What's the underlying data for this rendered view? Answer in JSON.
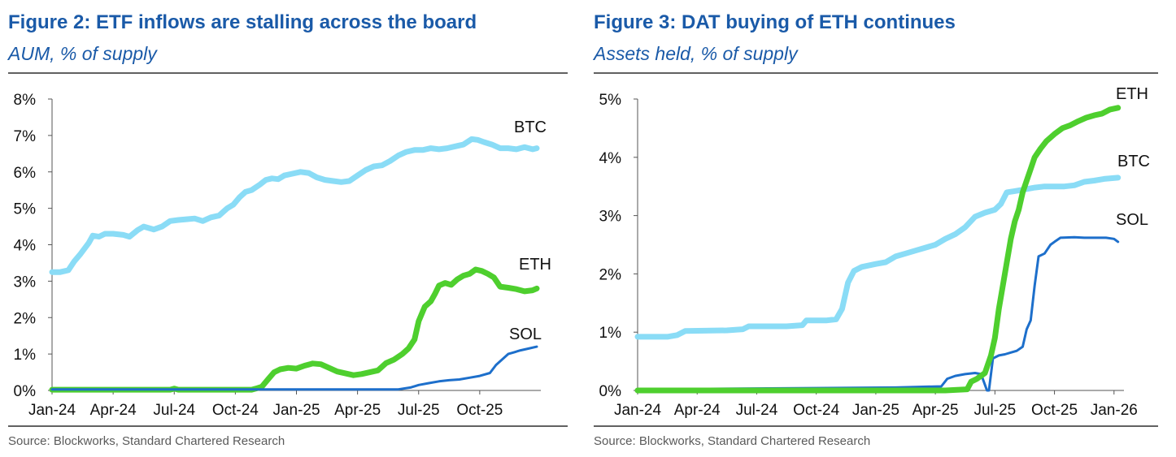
{
  "colors": {
    "BTC": "#8adcf6",
    "ETH": "#4ecf2e",
    "SOL": "#1d6fcb",
    "title": "#1a5aa8",
    "rule": "#2d2d2d",
    "axis": "#555555",
    "source": "#5a5a5a"
  },
  "chart_data": [
    {
      "type": "line",
      "title": "Figure 2: ETF inflows are stalling across the board",
      "subtitle": "AUM, % of supply",
      "source": "Source: Blockworks, Standard Chartered Research",
      "y_format": "percent",
      "ylim": [
        0,
        8
      ],
      "yticks": [
        0,
        1,
        2,
        3,
        4,
        5,
        6,
        7,
        8
      ],
      "xlim": [
        0,
        24
      ],
      "x_unit": "months since Jan-24",
      "xticks": [
        {
          "x": 0,
          "label": "Jan-24"
        },
        {
          "x": 3,
          "label": "Apr-24"
        },
        {
          "x": 6,
          "label": "Jul-24"
        },
        {
          "x": 9,
          "label": "Oct-24"
        },
        {
          "x": 12,
          "label": "Jan-25"
        },
        {
          "x": 15,
          "label": "Apr-25"
        },
        {
          "x": 18,
          "label": "Jul-25"
        },
        {
          "x": 21,
          "label": "Oct-25"
        }
      ],
      "series": [
        {
          "name": "BTC",
          "label": "BTC",
          "width": 7,
          "points": [
            [
              0,
              3.25
            ],
            [
              0.4,
              3.25
            ],
            [
              0.8,
              3.3
            ],
            [
              1.1,
              3.55
            ],
            [
              1.4,
              3.75
            ],
            [
              1.8,
              4.05
            ],
            [
              2.0,
              4.25
            ],
            [
              2.3,
              4.22
            ],
            [
              2.6,
              4.3
            ],
            [
              3.0,
              4.3
            ],
            [
              3.5,
              4.27
            ],
            [
              3.8,
              4.22
            ],
            [
              4.2,
              4.4
            ],
            [
              4.5,
              4.5
            ],
            [
              5.0,
              4.42
            ],
            [
              5.4,
              4.5
            ],
            [
              5.8,
              4.65
            ],
            [
              6.2,
              4.68
            ],
            [
              6.6,
              4.7
            ],
            [
              7.0,
              4.72
            ],
            [
              7.4,
              4.65
            ],
            [
              7.8,
              4.75
            ],
            [
              8.2,
              4.8
            ],
            [
              8.6,
              5.0
            ],
            [
              8.9,
              5.1
            ],
            [
              9.2,
              5.3
            ],
            [
              9.5,
              5.45
            ],
            [
              9.8,
              5.5
            ],
            [
              10.2,
              5.65
            ],
            [
              10.5,
              5.78
            ],
            [
              10.8,
              5.82
            ],
            [
              11.1,
              5.8
            ],
            [
              11.4,
              5.9
            ],
            [
              11.8,
              5.95
            ],
            [
              12.2,
              6.0
            ],
            [
              12.6,
              5.97
            ],
            [
              13.0,
              5.85
            ],
            [
              13.4,
              5.78
            ],
            [
              13.8,
              5.75
            ],
            [
              14.2,
              5.72
            ],
            [
              14.6,
              5.75
            ],
            [
              15.0,
              5.9
            ],
            [
              15.4,
              6.05
            ],
            [
              15.8,
              6.15
            ],
            [
              16.2,
              6.18
            ],
            [
              16.6,
              6.3
            ],
            [
              17.0,
              6.45
            ],
            [
              17.4,
              6.55
            ],
            [
              17.8,
              6.6
            ],
            [
              18.2,
              6.6
            ],
            [
              18.6,
              6.65
            ],
            [
              19.0,
              6.62
            ],
            [
              19.4,
              6.65
            ],
            [
              19.8,
              6.7
            ],
            [
              20.2,
              6.75
            ],
            [
              20.6,
              6.9
            ],
            [
              20.9,
              6.88
            ],
            [
              21.2,
              6.82
            ],
            [
              21.6,
              6.75
            ],
            [
              22.0,
              6.65
            ],
            [
              22.4,
              6.65
            ],
            [
              22.8,
              6.62
            ],
            [
              23.2,
              6.68
            ],
            [
              23.6,
              6.62
            ],
            [
              23.8,
              6.65
            ]
          ]
        },
        {
          "name": "ETH",
          "label": "ETH",
          "width": 7,
          "points": [
            [
              0,
              0.02
            ],
            [
              5.8,
              0.02
            ],
            [
              6.0,
              0.05
            ],
            [
              6.2,
              0.02
            ],
            [
              9.8,
              0.02
            ],
            [
              10.0,
              0.05
            ],
            [
              10.3,
              0.1
            ],
            [
              10.6,
              0.3
            ],
            [
              10.9,
              0.5
            ],
            [
              11.2,
              0.58
            ],
            [
              11.6,
              0.62
            ],
            [
              12.0,
              0.6
            ],
            [
              12.4,
              0.68
            ],
            [
              12.8,
              0.74
            ],
            [
              13.2,
              0.72
            ],
            [
              13.6,
              0.62
            ],
            [
              14.0,
              0.52
            ],
            [
              14.4,
              0.47
            ],
            [
              14.8,
              0.42
            ],
            [
              15.2,
              0.45
            ],
            [
              15.6,
              0.5
            ],
            [
              16.0,
              0.55
            ],
            [
              16.4,
              0.75
            ],
            [
              16.8,
              0.85
            ],
            [
              17.2,
              1.0
            ],
            [
              17.5,
              1.15
            ],
            [
              17.8,
              1.4
            ],
            [
              18.0,
              1.9
            ],
            [
              18.3,
              2.3
            ],
            [
              18.6,
              2.45
            ],
            [
              18.8,
              2.65
            ],
            [
              19.0,
              2.88
            ],
            [
              19.3,
              2.95
            ],
            [
              19.6,
              2.9
            ],
            [
              19.9,
              3.05
            ],
            [
              20.2,
              3.15
            ],
            [
              20.5,
              3.2
            ],
            [
              20.8,
              3.32
            ],
            [
              21.1,
              3.28
            ],
            [
              21.4,
              3.2
            ],
            [
              21.7,
              3.1
            ],
            [
              22.0,
              2.85
            ],
            [
              22.4,
              2.82
            ],
            [
              22.8,
              2.78
            ],
            [
              23.2,
              2.72
            ],
            [
              23.6,
              2.75
            ],
            [
              23.8,
              2.8
            ]
          ]
        },
        {
          "name": "SOL",
          "label": "SOL",
          "width": 3,
          "points": [
            [
              0,
              0.03
            ],
            [
              17.0,
              0.03
            ],
            [
              17.6,
              0.08
            ],
            [
              18.0,
              0.15
            ],
            [
              18.5,
              0.2
            ],
            [
              19.0,
              0.25
            ],
            [
              19.5,
              0.28
            ],
            [
              20.0,
              0.3
            ],
            [
              20.5,
              0.35
            ],
            [
              21.0,
              0.4
            ],
            [
              21.5,
              0.48
            ],
            [
              21.8,
              0.7
            ],
            [
              22.1,
              0.85
            ],
            [
              22.4,
              1.0
            ],
            [
              22.7,
              1.05
            ],
            [
              23.0,
              1.1
            ],
            [
              23.4,
              1.15
            ],
            [
              23.8,
              1.2
            ]
          ]
        }
      ]
    },
    {
      "type": "line",
      "title": "Figure 3: DAT buying of ETH continues",
      "subtitle": "Assets held, % of supply",
      "source": "Source: Blockworks, Standard Chartered Research",
      "y_format": "percent",
      "ylim": [
        0,
        5
      ],
      "yticks": [
        0,
        1,
        2,
        3,
        4,
        5
      ],
      "xlim": [
        0,
        24.5
      ],
      "x_unit": "months since Jan-24",
      "xticks": [
        {
          "x": 0,
          "label": "Jan-24"
        },
        {
          "x": 3,
          "label": "Apr-24"
        },
        {
          "x": 6,
          "label": "Jul-24"
        },
        {
          "x": 9,
          "label": "Oct-24"
        },
        {
          "x": 12,
          "label": "Jan-25"
        },
        {
          "x": 15,
          "label": "Apr-25"
        },
        {
          "x": 18,
          "label": "Jul-25"
        },
        {
          "x": 21,
          "label": "Oct-25"
        },
        {
          "x": 24,
          "label": "Jan-26"
        }
      ],
      "series": [
        {
          "name": "BTC",
          "label": "BTC",
          "width": 7,
          "points": [
            [
              0,
              0.92
            ],
            [
              1.5,
              0.92
            ],
            [
              2.0,
              0.95
            ],
            [
              2.4,
              1.02
            ],
            [
              4.5,
              1.03
            ],
            [
              5.3,
              1.05
            ],
            [
              5.6,
              1.1
            ],
            [
              7.5,
              1.1
            ],
            [
              8.3,
              1.12
            ],
            [
              8.5,
              1.2
            ],
            [
              9.5,
              1.2
            ],
            [
              10.0,
              1.22
            ],
            [
              10.3,
              1.4
            ],
            [
              10.6,
              1.85
            ],
            [
              10.9,
              2.05
            ],
            [
              11.3,
              2.12
            ],
            [
              12.0,
              2.17
            ],
            [
              12.5,
              2.2
            ],
            [
              13.0,
              2.3
            ],
            [
              13.5,
              2.35
            ],
            [
              14.0,
              2.4
            ],
            [
              14.5,
              2.45
            ],
            [
              15.0,
              2.5
            ],
            [
              15.5,
              2.6
            ],
            [
              16.0,
              2.68
            ],
            [
              16.5,
              2.8
            ],
            [
              17.0,
              2.98
            ],
            [
              17.5,
              3.05
            ],
            [
              18.0,
              3.1
            ],
            [
              18.3,
              3.2
            ],
            [
              18.6,
              3.4
            ],
            [
              19.0,
              3.42
            ],
            [
              19.5,
              3.45
            ],
            [
              20.0,
              3.48
            ],
            [
              20.5,
              3.5
            ],
            [
              21.5,
              3.5
            ],
            [
              22.0,
              3.52
            ],
            [
              22.5,
              3.58
            ],
            [
              23.0,
              3.6
            ],
            [
              23.5,
              3.63
            ],
            [
              24.2,
              3.65
            ]
          ]
        },
        {
          "name": "SOL",
          "label": "SOL",
          "width": 3,
          "points": [
            [
              0,
              0.02
            ],
            [
              13.0,
              0.05
            ],
            [
              14.0,
              0.06
            ],
            [
              15.3,
              0.07
            ],
            [
              15.6,
              0.2
            ],
            [
              16.0,
              0.25
            ],
            [
              16.5,
              0.28
            ],
            [
              17.0,
              0.3
            ],
            [
              17.3,
              0.28
            ],
            [
              17.6,
              0.0
            ],
            [
              17.7,
              0.0
            ],
            [
              17.9,
              0.55
            ],
            [
              18.2,
              0.6
            ],
            [
              18.5,
              0.62
            ],
            [
              18.8,
              0.65
            ],
            [
              19.1,
              0.68
            ],
            [
              19.4,
              0.75
            ],
            [
              19.6,
              1.05
            ],
            [
              19.8,
              1.2
            ],
            [
              20.0,
              1.8
            ],
            [
              20.2,
              2.3
            ],
            [
              20.5,
              2.35
            ],
            [
              20.8,
              2.5
            ],
            [
              21.0,
              2.55
            ],
            [
              21.3,
              2.62
            ],
            [
              22.0,
              2.63
            ],
            [
              22.5,
              2.62
            ],
            [
              23.0,
              2.62
            ],
            [
              23.6,
              2.62
            ],
            [
              24.0,
              2.6
            ],
            [
              24.2,
              2.55
            ]
          ]
        },
        {
          "name": "ETH",
          "label": "ETH",
          "width": 7,
          "points": [
            [
              0,
              0.0
            ],
            [
              15.5,
              0.0
            ],
            [
              16.6,
              0.02
            ],
            [
              16.8,
              0.15
            ],
            [
              17.1,
              0.2
            ],
            [
              17.5,
              0.3
            ],
            [
              17.8,
              0.6
            ],
            [
              18.0,
              0.9
            ],
            [
              18.2,
              1.4
            ],
            [
              18.4,
              1.8
            ],
            [
              18.6,
              2.2
            ],
            [
              18.8,
              2.6
            ],
            [
              19.0,
              2.9
            ],
            [
              19.2,
              3.1
            ],
            [
              19.4,
              3.4
            ],
            [
              19.6,
              3.6
            ],
            [
              19.8,
              3.8
            ],
            [
              20.0,
              4.0
            ],
            [
              20.3,
              4.15
            ],
            [
              20.6,
              4.28
            ],
            [
              21.0,
              4.4
            ],
            [
              21.4,
              4.5
            ],
            [
              21.8,
              4.55
            ],
            [
              22.2,
              4.62
            ],
            [
              22.6,
              4.68
            ],
            [
              23.0,
              4.72
            ],
            [
              23.4,
              4.75
            ],
            [
              23.8,
              4.82
            ],
            [
              24.2,
              4.85
            ]
          ]
        }
      ]
    }
  ]
}
